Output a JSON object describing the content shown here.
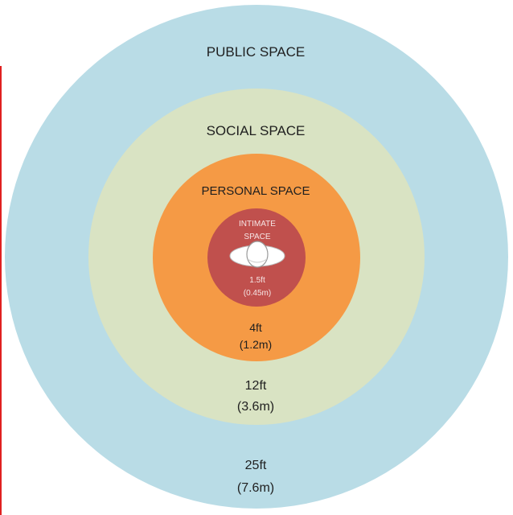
{
  "colors": {
    "public": "#b9dce6",
    "social": "#d9e3c3",
    "personal": "#f59a45",
    "intimate": "#c0504d",
    "person": "#ffffff",
    "left_edge_line": "#e02020"
  },
  "zones": {
    "public": {
      "label": "PUBLIC SPACE",
      "distance_ft": "25ft",
      "distance_m": "(7.6m)"
    },
    "social": {
      "label": "SOCIAL SPACE",
      "distance_ft": "12ft",
      "distance_m": "(3.6m)"
    },
    "personal": {
      "label": "PERSONAL SPACE",
      "distance_ft": "4ft",
      "distance_m": "(1.2m)"
    },
    "intimate": {
      "label_line1": "INTIMATE",
      "label_line2": "SPACE",
      "distance_ft": "1.5ft",
      "distance_m": "(0.45m)"
    }
  },
  "icons": {
    "center": "person-top-view-icon"
  }
}
